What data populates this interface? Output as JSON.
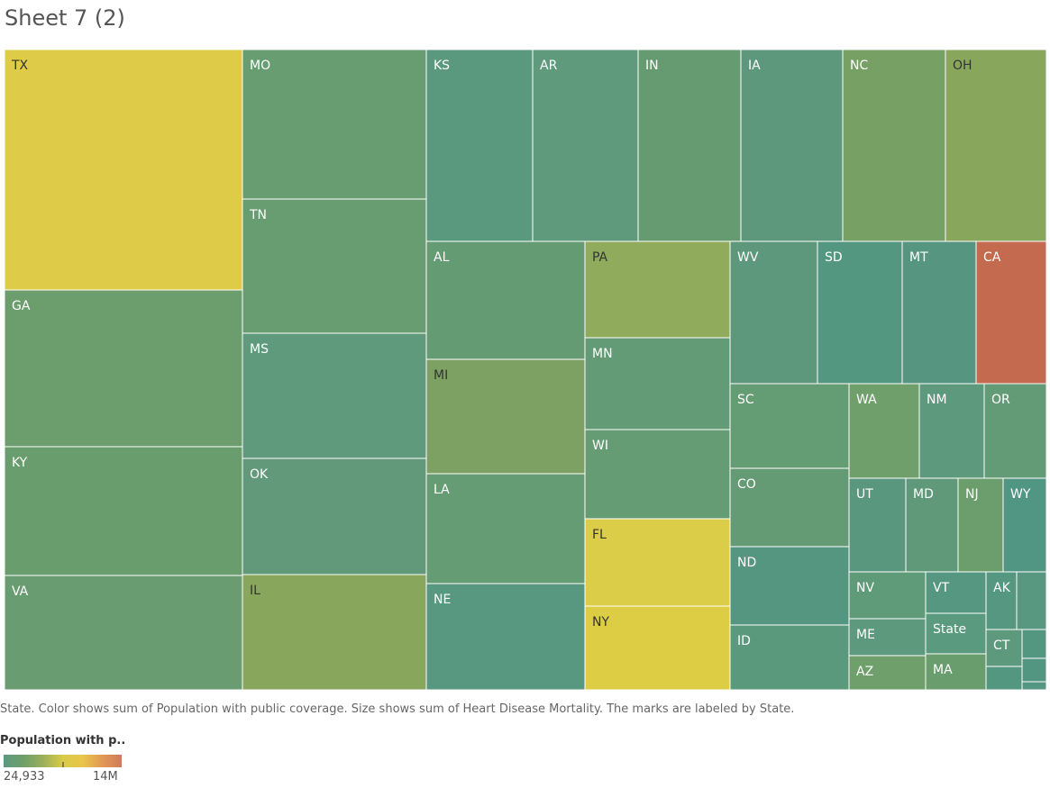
{
  "title": "Sheet 7 (2)",
  "caption": "State.  Color shows sum of Population with public coverage.  Size shows sum of Heart Disease Mortality.  The marks are labeled by State.",
  "legend": {
    "title": "Population with p..",
    "min_label": "24,933",
    "max_label": "14M",
    "colors": [
      "#5b9a7f",
      "#6f9f6a",
      "#9aae5a",
      "#d8cc46",
      "#e9c54a",
      "#e19a55",
      "#d2785c"
    ]
  },
  "chart_data": {
    "type": "treemap",
    "size_measure": "sum of Heart Disease Mortality",
    "color_measure": "sum of Population with public coverage",
    "color_range": [
      24933,
      14000000
    ],
    "marks": [
      {
        "label": "TX",
        "color": "#decb47"
      },
      {
        "label": "MO",
        "color": "#689c71"
      },
      {
        "label": "KS",
        "color": "#5a997e"
      },
      {
        "label": "AR",
        "color": "#5e9a7b"
      },
      {
        "label": "IN",
        "color": "#669b72"
      },
      {
        "label": "IA",
        "color": "#5e987c"
      },
      {
        "label": "NC",
        "color": "#77a064"
      },
      {
        "label": "OH",
        "color": "#89a75c"
      },
      {
        "label": "GA",
        "color": "#6c9d6c"
      },
      {
        "label": "TN",
        "color": "#689c71"
      },
      {
        "label": "AL",
        "color": "#659b73"
      },
      {
        "label": "PA",
        "color": "#8fab5b"
      },
      {
        "label": "WV",
        "color": "#5e987c"
      },
      {
        "label": "SD",
        "color": "#549781"
      },
      {
        "label": "MT",
        "color": "#569680"
      },
      {
        "label": "CA",
        "color": "#c46a4f"
      },
      {
        "label": "MS",
        "color": "#5e9a7b"
      },
      {
        "label": "MI",
        "color": "#7ca163"
      },
      {
        "label": "MN",
        "color": "#639b76"
      },
      {
        "label": "KY",
        "color": "#6a9d6e"
      },
      {
        "label": "SC",
        "color": "#649c74"
      },
      {
        "label": "WA",
        "color": "#6f9f6a"
      },
      {
        "label": "NM",
        "color": "#5c997d"
      },
      {
        "label": "OR",
        "color": "#629b76"
      },
      {
        "label": "OK",
        "color": "#62997a"
      },
      {
        "label": "WI",
        "color": "#659c73"
      },
      {
        "label": "LA",
        "color": "#659c73"
      },
      {
        "label": "CO",
        "color": "#649b75"
      },
      {
        "label": "UT",
        "color": "#59977f"
      },
      {
        "label": "MD",
        "color": "#60997a"
      },
      {
        "label": "NJ",
        "color": "#6b9d6d"
      },
      {
        "label": "WY",
        "color": "#509683"
      },
      {
        "label": "FL",
        "color": "#dbcd47"
      },
      {
        "label": "ND",
        "color": "#559681"
      },
      {
        "label": "VA",
        "color": "#699c70"
      },
      {
        "label": "IL",
        "color": "#89a75c"
      },
      {
        "label": "NE",
        "color": "#589880"
      },
      {
        "label": "NY",
        "color": "#dccd45"
      },
      {
        "label": "NV",
        "color": "#609b79"
      },
      {
        "label": "VT",
        "color": "#559781"
      },
      {
        "label": "AK",
        "color": "#559781"
      },
      {
        "label": "State",
        "color": "#5a9a7e"
      },
      {
        "label": "ME",
        "color": "#5c997d"
      },
      {
        "label": "ID",
        "color": "#5b997d"
      },
      {
        "label": "CT",
        "color": "#5c997d"
      },
      {
        "label": "MA",
        "color": "#6a9d6e"
      },
      {
        "label": "AZ",
        "color": "#6f9f6a"
      },
      {
        "label": "",
        "color": "#589880"
      },
      {
        "label": "",
        "color": "#549781"
      },
      {
        "label": "",
        "color": "#529682"
      },
      {
        "label": "",
        "color": "#549781"
      },
      {
        "label": "",
        "color": "#539682"
      },
      {
        "label": "",
        "color": "#509683"
      },
      {
        "label": "",
        "color": "#4e9584"
      }
    ]
  }
}
